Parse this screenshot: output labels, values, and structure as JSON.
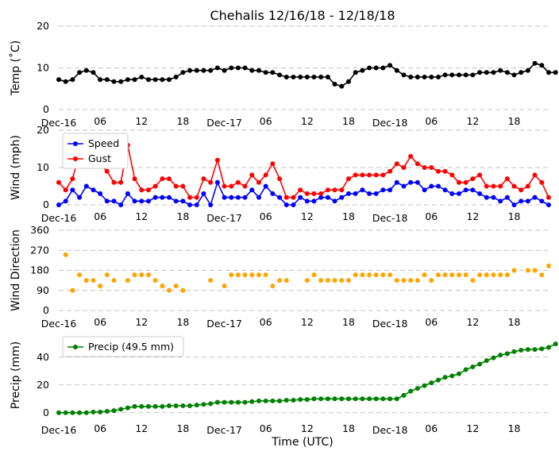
{
  "title": "Chehalis 12/16/18 - 12/18/18",
  "xlabel": "Time (UTC)",
  "x_tick_labels": [
    "Dec-16",
    "06",
    "12",
    "18",
    "Dec-17",
    "06",
    "12",
    "18",
    "Dec-18",
    "06",
    "12",
    "18"
  ],
  "x_tick_hours": [
    0,
    6,
    12,
    18,
    24,
    30,
    36,
    42,
    48,
    54,
    60,
    66
  ],
  "colors": {
    "temp": "#000000",
    "speed": "#0000ff",
    "gust": "#ff0000",
    "dir": "#ffa500",
    "precip": "#008000"
  },
  "chart_data": [
    {
      "type": "line",
      "id": "temp",
      "ylabel": "Temp (˚C)",
      "ylim": [
        0,
        20
      ],
      "yticks": [
        0,
        10,
        20
      ],
      "x_hours_start": 0,
      "x_hours_step": 1,
      "series": [
        {
          "name": "Temp",
          "color": "#000000",
          "values": [
            7.2,
            6.7,
            7.2,
            8.9,
            9.4,
            8.9,
            7.2,
            7.2,
            6.7,
            6.7,
            7.2,
            7.2,
            7.8,
            7.2,
            7.2,
            7.2,
            7.2,
            7.8,
            8.9,
            9.4,
            9.4,
            9.4,
            9.4,
            10,
            9.4,
            10,
            10,
            10,
            9.4,
            9.4,
            8.9,
            8.9,
            8.3,
            7.8,
            7.8,
            7.8,
            7.8,
            7.8,
            7.8,
            7.8,
            6.1,
            5.6,
            6.7,
            8.9,
            9.4,
            10,
            10,
            10,
            10.6,
            9.4,
            8.3,
            7.8,
            7.8,
            7.8,
            7.8,
            7.8,
            8.3,
            8.3,
            8.3,
            8.3,
            8.3,
            8.9,
            8.9,
            8.9,
            9.4,
            8.9,
            8.3,
            8.9,
            9.4,
            11.1,
            10.6,
            8.9,
            8.9
          ]
        }
      ]
    },
    {
      "type": "line",
      "id": "wind",
      "ylabel": "Wind (mph)",
      "ylim": [
        0,
        20
      ],
      "yticks": [
        0,
        10,
        20
      ],
      "x_hours_start": 0,
      "x_hours_step": 1,
      "series": [
        {
          "name": "Speed",
          "color": "#0000ff",
          "values": [
            0,
            1,
            4,
            2,
            5,
            4,
            3,
            1,
            1,
            0,
            3,
            1,
            1,
            1,
            2,
            2,
            2,
            1,
            1,
            0,
            0,
            3,
            0,
            6,
            2,
            2,
            2,
            2,
            4,
            2,
            5,
            3,
            2,
            0,
            0,
            2,
            1,
            1,
            2,
            2,
            1,
            2,
            3,
            3,
            4,
            3,
            3,
            4,
            4,
            6,
            5,
            6,
            6,
            4,
            5,
            5,
            4,
            3,
            3,
            4,
            4,
            3,
            2,
            2,
            1,
            2,
            0,
            1,
            1,
            2,
            1,
            0
          ]
        },
        {
          "name": "Gust",
          "color": "#ff0000",
          "values": [
            6,
            4,
            7,
            14,
            17,
            15,
            11,
            9,
            6,
            6,
            16,
            7,
            4,
            4,
            5,
            7,
            7,
            5,
            5,
            2,
            2,
            7,
            6,
            12,
            5,
            5,
            6,
            5,
            8,
            6,
            8,
            11,
            7,
            2,
            2,
            4,
            3,
            3,
            3,
            4,
            4,
            4,
            7,
            8,
            8,
            8,
            8,
            8,
            9,
            11,
            10,
            13,
            11,
            10,
            10,
            9,
            9,
            8,
            6,
            6,
            7,
            8,
            5,
            5,
            5,
            7,
            5,
            4,
            5,
            8,
            6,
            2
          ]
        }
      ],
      "legend": [
        "Speed",
        "Gust"
      ],
      "legend_loc": "upper-left"
    },
    {
      "type": "scatter",
      "id": "dir",
      "ylabel": "Wind Direction",
      "ylim": [
        0,
        360
      ],
      "yticks": [
        0,
        90,
        180,
        270,
        360
      ],
      "x_hours_start": 1,
      "x_hours_step": 1,
      "series": [
        {
          "name": "Direction",
          "color": "#ffa500",
          "values": [
            250,
            90,
            160,
            135,
            135,
            110,
            160,
            135,
            null,
            135,
            160,
            160,
            160,
            135,
            110,
            90,
            110,
            90,
            null,
            null,
            null,
            135,
            null,
            110,
            160,
            160,
            160,
            160,
            160,
            160,
            110,
            135,
            135,
            null,
            null,
            135,
            160,
            135,
            135,
            135,
            135,
            135,
            160,
            160,
            160,
            160,
            160,
            160,
            135,
            135,
            135,
            135,
            160,
            135,
            160,
            160,
            160,
            160,
            160,
            135,
            160,
            160,
            160,
            160,
            160,
            180,
            null,
            180,
            180,
            160,
            200
          ]
        }
      ]
    },
    {
      "type": "line",
      "id": "precip",
      "ylabel": "Precip (mm)",
      "ylim": [
        -3,
        57
      ],
      "yticks": [
        0,
        20,
        40
      ],
      "x_hours_start": 0,
      "x_hours_step": 1,
      "series": [
        {
          "name": "Precip (49.5 mm)",
          "color": "#008000",
          "values": [
            0,
            0,
            0,
            0,
            0,
            0.5,
            0.5,
            1,
            1.5,
            2.5,
            3.5,
            4.5,
            4.5,
            4.5,
            4.5,
            4.5,
            5,
            5,
            5,
            5,
            5.5,
            6,
            6.5,
            7.5,
            7.5,
            7.5,
            7.5,
            7.5,
            8,
            8.5,
            8.5,
            8.5,
            8.5,
            9,
            9,
            9.5,
            9.5,
            10,
            10,
            10,
            10,
            10,
            10,
            10,
            10,
            10,
            10,
            10,
            10,
            10,
            12.5,
            15.5,
            17.5,
            19.5,
            21.5,
            23.5,
            25.5,
            26.5,
            28,
            31,
            33,
            35,
            37.5,
            39.5,
            41.5,
            42.5,
            44,
            45,
            45.5,
            45.5,
            46,
            47,
            49.5
          ]
        }
      ],
      "legend": [
        "Precip (49.5 mm)"
      ],
      "legend_loc": "upper-left"
    }
  ]
}
